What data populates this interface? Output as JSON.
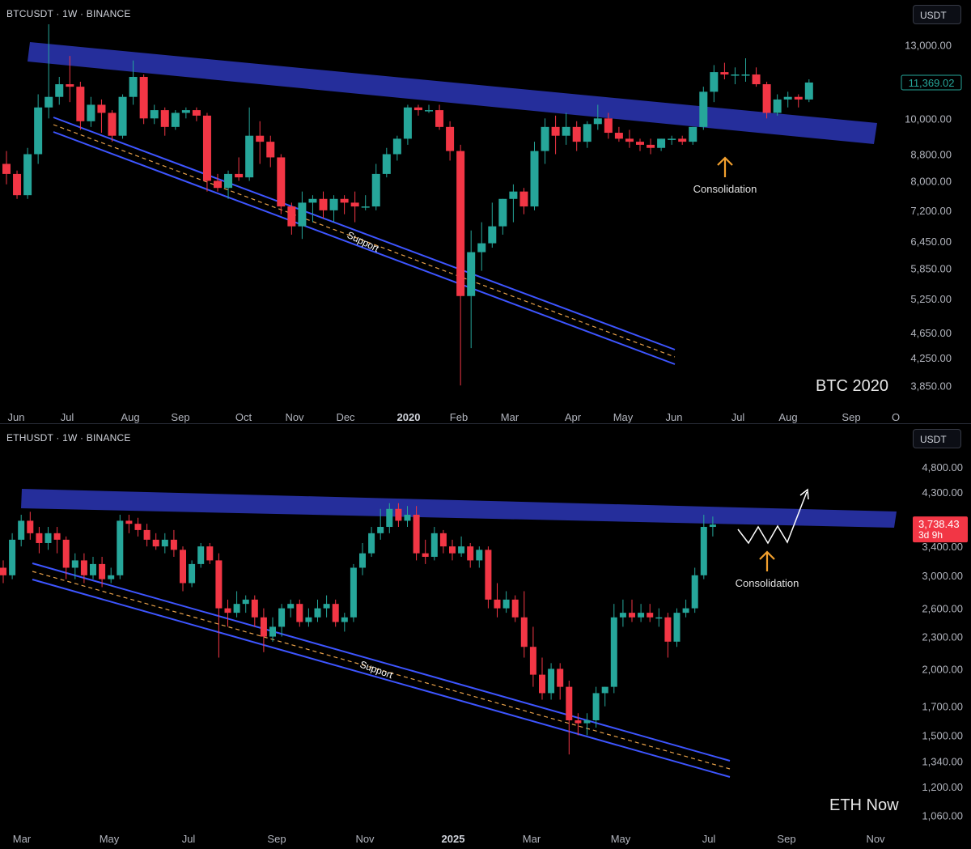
{
  "chart_data": [
    {
      "type": "candlestick",
      "symbol": "BTCUSDT · 1W · BINANCE",
      "currency": "USDT",
      "label": "BTC 2020",
      "y_ticks": [
        13000,
        10000,
        8800,
        8000,
        7200,
        6450,
        5850,
        5250,
        4650,
        4250,
        3850
      ],
      "y_tick_labels": [
        "13,000.00",
        "10,000.00",
        "8,800.00",
        "8,000.00",
        "7,200.00",
        "6,450.00",
        "5,850.00",
        "5,250.00",
        "4,650.00",
        "4,250.00",
        "3,850.00"
      ],
      "ylim": [
        3700,
        14000
      ],
      "y_scale": "log",
      "x_labels": [
        "Jun",
        "Jul",
        "Aug",
        "Sep",
        "Oct",
        "Nov",
        "Dec",
        "2020",
        "Feb",
        "Mar",
        "Apr",
        "May",
        "Jun",
        "Jul",
        "Aug",
        "Sep",
        "O"
      ],
      "last_price": "11,369.02",
      "resistance_label": "",
      "support_label": "Support",
      "annotation": "Consolidation",
      "candles": [
        [
          8500,
          8200,
          8900,
          7900
        ],
        [
          8200,
          7600,
          8300,
          7500
        ],
        [
          7600,
          8800,
          9000,
          7500
        ],
        [
          8800,
          10400,
          10900,
          8500
        ],
        [
          10400,
          10800,
          14000,
          10000
        ],
        [
          10800,
          11300,
          11600,
          10500
        ],
        [
          11300,
          11200,
          12500,
          10600
        ],
        [
          11200,
          9900,
          11400,
          9600
        ],
        [
          9900,
          10500,
          10800,
          9700
        ],
        [
          10500,
          10200,
          10700,
          9500
        ],
        [
          10200,
          9400,
          10300,
          9200
        ],
        [
          9400,
          10800,
          10900,
          9300
        ],
        [
          10800,
          11600,
          12300,
          10500
        ],
        [
          11600,
          10000,
          11700,
          9800
        ],
        [
          10000,
          10300,
          10500,
          9800
        ],
        [
          10300,
          9700,
          10400,
          9400
        ],
        [
          9700,
          10200,
          10300,
          9600
        ],
        [
          10200,
          10300,
          10400,
          10000
        ],
        [
          10300,
          10100,
          10400,
          9900
        ],
        [
          10100,
          8000,
          10200,
          7700
        ],
        [
          8000,
          7800,
          8200,
          7700
        ],
        [
          7800,
          8200,
          8300,
          7500
        ],
        [
          8200,
          8100,
          8700,
          8000
        ],
        [
          8100,
          9400,
          10400,
          8000
        ],
        [
          9400,
          9200,
          9900,
          8500
        ],
        [
          9200,
          8700,
          9400,
          8400
        ],
        [
          8700,
          7300,
          8800,
          7100
        ],
        [
          7300,
          6800,
          7400,
          6600
        ],
        [
          6800,
          7400,
          7700,
          6500
        ],
        [
          7400,
          7500,
          7600,
          6900
        ],
        [
          7500,
          7200,
          7700,
          7000
        ],
        [
          7200,
          7500,
          7600,
          6900
        ],
        [
          7500,
          7400,
          7600,
          7100
        ],
        [
          7400,
          7300,
          7700,
          6900
        ],
        [
          7300,
          7300,
          7600,
          7200
        ],
        [
          7300,
          8200,
          8500,
          7200
        ],
        [
          8200,
          8800,
          9000,
          8100
        ],
        [
          8800,
          9300,
          9400,
          8600
        ],
        [
          9300,
          10400,
          10500,
          9100
        ],
        [
          10400,
          10300,
          10500,
          10100
        ],
        [
          10300,
          10300,
          10500,
          10200
        ],
        [
          10300,
          9700,
          10500,
          9600
        ],
        [
          9700,
          8900,
          9900,
          8600
        ],
        [
          8900,
          5300,
          9100,
          3850
        ],
        [
          5300,
          6200,
          6700,
          4400
        ],
        [
          6200,
          6400,
          6900,
          5800
        ],
        [
          6400,
          6800,
          7400,
          6300
        ],
        [
          6800,
          7500,
          7500,
          6600
        ],
        [
          7500,
          7700,
          7900,
          6900
        ],
        [
          7700,
          7300,
          7800,
          7100
        ],
        [
          7300,
          8900,
          9200,
          7200
        ],
        [
          8900,
          9700,
          10000,
          8500
        ],
        [
          9700,
          9400,
          10100,
          8800
        ],
        [
          9400,
          9700,
          10200,
          9100
        ],
        [
          9700,
          9200,
          9900,
          8900
        ],
        [
          9200,
          9800,
          9900,
          9000
        ],
        [
          9800,
          10000,
          10500,
          9600
        ],
        [
          10000,
          9500,
          10200,
          9300
        ],
        [
          9500,
          9300,
          9700,
          9200
        ],
        [
          9300,
          9200,
          9600,
          9000
        ],
        [
          9200,
          9100,
          9300,
          8900
        ],
        [
          9100,
          9000,
          9300,
          8800
        ],
        [
          9000,
          9300,
          9300,
          8900
        ],
        [
          9300,
          9300,
          9400,
          9100
        ],
        [
          9300,
          9200,
          9400,
          9100
        ],
        [
          9200,
          9700,
          9700,
          9100
        ],
        [
          9700,
          11000,
          11200,
          9600
        ],
        [
          11000,
          11800,
          12100,
          10600
        ],
        [
          11800,
          11700,
          12200,
          11500
        ],
        [
          11700,
          11700,
          12000,
          11300
        ],
        [
          11700,
          11700,
          12400,
          11400
        ],
        [
          11700,
          11300,
          12000,
          11200
        ],
        [
          11300,
          10200,
          11400,
          10000
        ],
        [
          10200,
          10700,
          10900,
          10100
        ],
        [
          10700,
          10800,
          11000,
          10400
        ],
        [
          10800,
          10700,
          10900,
          10400
        ],
        [
          10700,
          11369,
          11500,
          10600
        ]
      ]
    },
    {
      "type": "candlestick",
      "symbol": "ETHUSDT · 1W · BINANCE",
      "currency": "USDT",
      "label": "ETH Now",
      "y_ticks": [
        4800,
        4300,
        3400,
        3000,
        2600,
        2300,
        2000,
        1700,
        1500,
        1340,
        1200,
        1060
      ],
      "y_tick_labels": [
        "4,800.00",
        "4,300.00",
        "3,400.00",
        "3,000.00",
        "2,600.00",
        "2,300.00",
        "2,000.00",
        "1,700.00",
        "1,500.00",
        "1,340.00",
        "1,200.00",
        "1,060.00"
      ],
      "ylim": [
        1000,
        5200
      ],
      "y_scale": "log",
      "x_labels": [
        "Mar",
        "May",
        "Jul",
        "Sep",
        "Nov",
        "2025",
        "Mar",
        "May",
        "Jul",
        "Sep",
        "Nov"
      ],
      "last_price": "3,738.43",
      "countdown": "3d 9h",
      "support_label": "Support",
      "annotation": "Consolidation",
      "candles": [
        [
          3100,
          3000,
          3200,
          2900
        ],
        [
          3000,
          3500,
          3600,
          2950
        ],
        [
          3500,
          3800,
          3900,
          3400
        ],
        [
          3800,
          3600,
          3950,
          3500
        ],
        [
          3600,
          3450,
          3700,
          3300
        ],
        [
          3450,
          3600,
          3700,
          3350
        ],
        [
          3600,
          3500,
          3700,
          3300
        ],
        [
          3500,
          3100,
          3550,
          2950
        ],
        [
          3100,
          3200,
          3300,
          2950
        ],
        [
          3200,
          3000,
          3300,
          2900
        ],
        [
          3000,
          3150,
          3250,
          2950
        ],
        [
          3150,
          2950,
          3250,
          2850
        ],
        [
          2950,
          3000,
          3100,
          2900
        ],
        [
          3000,
          3800,
          3900,
          2950
        ],
        [
          3800,
          3750,
          3900,
          3600
        ],
        [
          3750,
          3650,
          3850,
          3550
        ],
        [
          3650,
          3500,
          3750,
          3400
        ],
        [
          3500,
          3400,
          3600,
          3350
        ],
        [
          3400,
          3500,
          3600,
          3300
        ],
        [
          3500,
          3350,
          3650,
          3250
        ],
        [
          3350,
          2900,
          3400,
          2800
        ],
        [
          2900,
          3150,
          3200,
          2850
        ],
        [
          3150,
          3400,
          3450,
          3100
        ],
        [
          3400,
          3200,
          3450,
          3150
        ],
        [
          3200,
          2600,
          3300,
          2100
        ],
        [
          2600,
          2550,
          2700,
          2400
        ],
        [
          2550,
          2650,
          2800,
          2500
        ],
        [
          2650,
          2700,
          2750,
          2550
        ],
        [
          2700,
          2500,
          2750,
          2400
        ],
        [
          2500,
          2300,
          2600,
          2150
        ],
        [
          2300,
          2400,
          2500,
          2250
        ],
        [
          2400,
          2600,
          2650,
          2300
        ],
        [
          2600,
          2650,
          2700,
          2500
        ],
        [
          2650,
          2450,
          2700,
          2400
        ],
        [
          2450,
          2500,
          2600,
          2400
        ],
        [
          2500,
          2600,
          2700,
          2450
        ],
        [
          2600,
          2650,
          2750,
          2500
        ],
        [
          2650,
          2450,
          2700,
          2400
        ],
        [
          2450,
          2500,
          2550,
          2350
        ],
        [
          2500,
          3100,
          3150,
          2450
        ],
        [
          3100,
          3300,
          3450,
          3000
        ],
        [
          3300,
          3600,
          3700,
          3250
        ],
        [
          3600,
          3700,
          4000,
          3500
        ],
        [
          3700,
          4000,
          4100,
          3600
        ],
        [
          4000,
          3800,
          4100,
          3700
        ],
        [
          3800,
          3900,
          4050,
          3700
        ],
        [
          3900,
          3300,
          4050,
          3200
        ],
        [
          3300,
          3250,
          3500,
          3150
        ],
        [
          3250,
          3600,
          3700,
          3200
        ],
        [
          3600,
          3400,
          3650,
          3300
        ],
        [
          3400,
          3300,
          3500,
          3200
        ],
        [
          3300,
          3400,
          3550,
          3250
        ],
        [
          3400,
          3200,
          3450,
          3100
        ],
        [
          3200,
          3350,
          3400,
          3100
        ],
        [
          3350,
          2700,
          3400,
          2600
        ],
        [
          2700,
          2600,
          2900,
          2500
        ],
        [
          2600,
          2700,
          2800,
          2550
        ],
        [
          2700,
          2500,
          2750,
          2450
        ],
        [
          2500,
          2200,
          2800,
          2100
        ],
        [
          2200,
          1950,
          2400,
          1850
        ],
        [
          1950,
          1800,
          2100,
          1750
        ],
        [
          1800,
          2000,
          2050,
          1750
        ],
        [
          2000,
          1850,
          2050,
          1750
        ],
        [
          1850,
          1600,
          1900,
          1380
        ],
        [
          1600,
          1580,
          1650,
          1500
        ],
        [
          1580,
          1600,
          1650,
          1500
        ],
        [
          1600,
          1800,
          1850,
          1550
        ],
        [
          1800,
          1850,
          1850,
          1700
        ],
        [
          1850,
          2500,
          2650,
          1800
        ],
        [
          2500,
          2550,
          2700,
          2400
        ],
        [
          2550,
          2500,
          2700,
          2450
        ],
        [
          2500,
          2550,
          2650,
          2450
        ],
        [
          2550,
          2500,
          2650,
          2450
        ],
        [
          2500,
          2500,
          2600,
          2400
        ],
        [
          2500,
          2250,
          2550,
          2100
        ],
        [
          2250,
          2550,
          2600,
          2200
        ],
        [
          2550,
          2600,
          2700,
          2500
        ],
        [
          2600,
          3000,
          3100,
          2550
        ],
        [
          3000,
          3700,
          3900,
          2950
        ],
        [
          3700,
          3738,
          3870,
          3550
        ]
      ]
    }
  ]
}
